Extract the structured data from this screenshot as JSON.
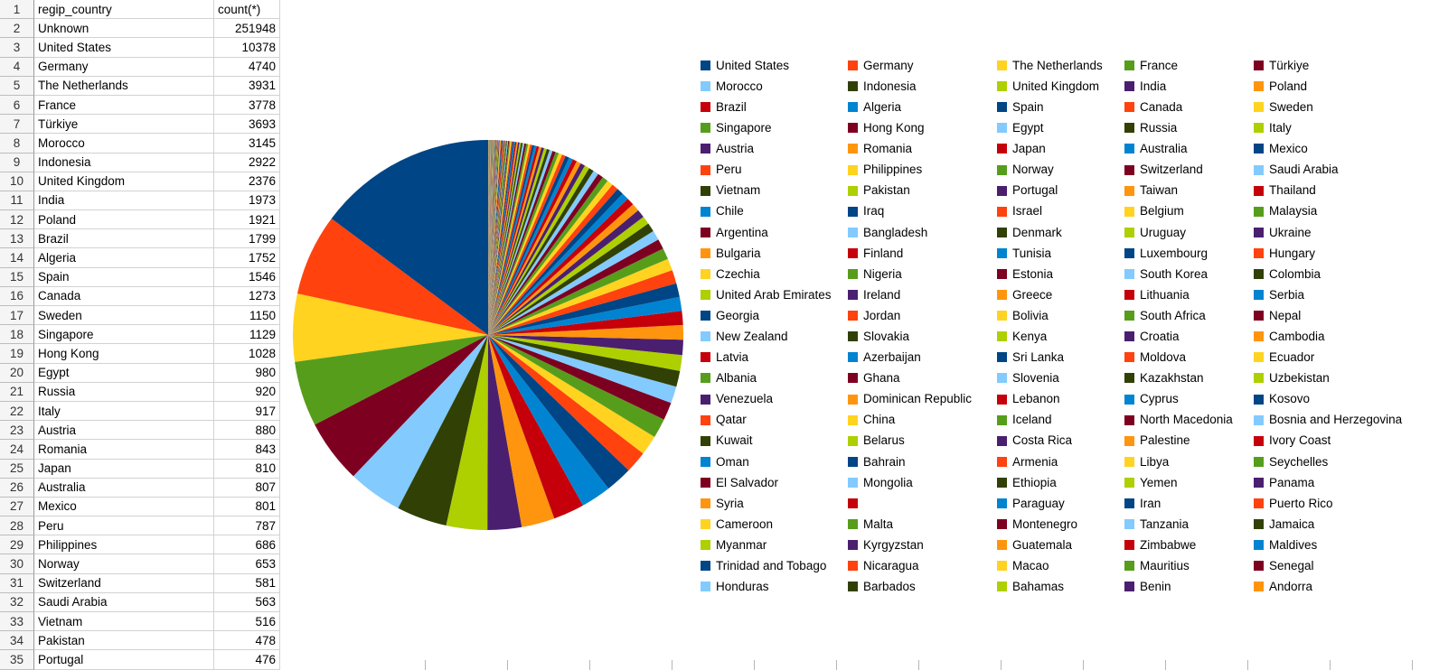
{
  "spreadsheet": {
    "rows": [
      {
        "n": "1",
        "country": "regip_country",
        "count": "count(*)",
        "header": true
      },
      {
        "n": "2",
        "country": "Unknown",
        "count": "251948"
      },
      {
        "n": "3",
        "country": "United States",
        "count": "10378"
      },
      {
        "n": "4",
        "country": "Germany",
        "count": "4740"
      },
      {
        "n": "5",
        "country": "The Netherlands",
        "count": "3931"
      },
      {
        "n": "6",
        "country": "France",
        "count": "3778"
      },
      {
        "n": "7",
        "country": "Türkiye",
        "count": "3693"
      },
      {
        "n": "8",
        "country": "Morocco",
        "count": "3145"
      },
      {
        "n": "9",
        "country": "Indonesia",
        "count": "2922"
      },
      {
        "n": "10",
        "country": "United Kingdom",
        "count": "2376"
      },
      {
        "n": "11",
        "country": "India",
        "count": "1973"
      },
      {
        "n": "12",
        "country": "Poland",
        "count": "1921"
      },
      {
        "n": "13",
        "country": "Brazil",
        "count": "1799"
      },
      {
        "n": "14",
        "country": "Algeria",
        "count": "1752"
      },
      {
        "n": "15",
        "country": "Spain",
        "count": "1546"
      },
      {
        "n": "16",
        "country": "Canada",
        "count": "1273"
      },
      {
        "n": "17",
        "country": "Sweden",
        "count": "1150"
      },
      {
        "n": "18",
        "country": "Singapore",
        "count": "1129"
      },
      {
        "n": "19",
        "country": "Hong Kong",
        "count": "1028"
      },
      {
        "n": "20",
        "country": "Egypt",
        "count": "980"
      },
      {
        "n": "21",
        "country": "Russia",
        "count": "920"
      },
      {
        "n": "22",
        "country": "Italy",
        "count": "917"
      },
      {
        "n": "23",
        "country": "Austria",
        "count": "880"
      },
      {
        "n": "24",
        "country": "Romania",
        "count": "843"
      },
      {
        "n": "25",
        "country": "Japan",
        "count": "810"
      },
      {
        "n": "26",
        "country": "Australia",
        "count": "807"
      },
      {
        "n": "27",
        "country": "Mexico",
        "count": "801"
      },
      {
        "n": "28",
        "country": "Peru",
        "count": "787"
      },
      {
        "n": "29",
        "country": "Philippines",
        "count": "686"
      },
      {
        "n": "30",
        "country": "Norway",
        "count": "653"
      },
      {
        "n": "31",
        "country": "Switzerland",
        "count": "581"
      },
      {
        "n": "32",
        "country": "Saudi Arabia",
        "count": "563"
      },
      {
        "n": "33",
        "country": "Vietnam",
        "count": "516"
      },
      {
        "n": "34",
        "country": "Pakistan",
        "count": "478"
      },
      {
        "n": "35",
        "country": "Portugal",
        "count": "476"
      }
    ]
  },
  "chart_data": {
    "type": "pie",
    "title": "",
    "legend_position": "right",
    "legend_columns": 5,
    "start_angle_deg": 90,
    "direction": "counterclockwise",
    "excluded_category": {
      "name": "Unknown",
      "value": 251948
    },
    "palette": [
      "#004586",
      "#ff420e",
      "#ffd320",
      "#579d1c",
      "#7e0021",
      "#83caff",
      "#314004",
      "#aecf00",
      "#4b1f6f",
      "#ff950e",
      "#c5000b",
      "#0084d1"
    ],
    "categories": [
      "United States",
      "Germany",
      "The Netherlands",
      "France",
      "Türkiye",
      "Morocco",
      "Indonesia",
      "United Kingdom",
      "India",
      "Poland",
      "Brazil",
      "Algeria",
      "Spain",
      "Canada",
      "Sweden",
      "Singapore",
      "Hong Kong",
      "Egypt",
      "Russia",
      "Italy",
      "Austria",
      "Romania",
      "Japan",
      "Australia",
      "Mexico",
      "Peru",
      "Philippines",
      "Norway",
      "Switzerland",
      "Saudi Arabia",
      "Vietnam",
      "Pakistan",
      "Portugal",
      "Taiwan",
      "Thailand",
      "Chile",
      "Iraq",
      "Israel",
      "Belgium",
      "Malaysia",
      "Argentina",
      "Bangladesh",
      "Denmark",
      "Uruguay",
      "Ukraine",
      "Bulgaria",
      "Finland",
      "Tunisia",
      "Luxembourg",
      "Hungary",
      "Czechia",
      "Nigeria",
      "Estonia",
      "South Korea",
      "Colombia",
      "United Arab Emirates",
      "Ireland",
      "Greece",
      "Lithuania",
      "Serbia",
      "Georgia",
      "Jordan",
      "Bolivia",
      "South Africa",
      "Nepal",
      "New Zealand",
      "Slovakia",
      "Kenya",
      "Croatia",
      "Cambodia",
      "Latvia",
      "Azerbaijan",
      "Sri Lanka",
      "Moldova",
      "Ecuador",
      "Albania",
      "Ghana",
      "Slovenia",
      "Kazakhstan",
      "Uzbekistan",
      "Venezuela",
      "Dominican Republic",
      "Lebanon",
      "Cyprus",
      "Kosovo",
      "Qatar",
      "China",
      "Iceland",
      "North Macedonia",
      "Bosnia and Herzegovina",
      "Kuwait",
      "Belarus",
      "Costa Rica",
      "Palestine",
      "Ivory Coast",
      "Oman",
      "Bahrain",
      "Armenia",
      "Libya",
      "Seychelles",
      "El Salvador",
      "Mongolia",
      "Ethiopia",
      "Yemen",
      "Panama",
      "Syria",
      "",
      "Paraguay",
      "Iran",
      "Puerto Rico",
      "Cameroon",
      "Malta",
      "Montenegro",
      "Tanzania",
      "Jamaica",
      "Myanmar",
      "Kyrgyzstan",
      "Guatemala",
      "Zimbabwe",
      "Maldives",
      "Trinidad and Tobago",
      "Nicaragua",
      "Macao",
      "Mauritius",
      "Senegal",
      "Honduras",
      "Barbados",
      "Bahamas",
      "Benin",
      "Andorra"
    ],
    "values_from_table": [
      10378,
      4740,
      3931,
      3778,
      3693,
      3145,
      2922,
      2376,
      1973,
      1921,
      1799,
      1752,
      1546,
      1273,
      1150,
      1129,
      1028,
      980,
      920,
      917,
      880,
      843,
      810,
      807,
      801,
      787,
      686,
      653,
      581,
      563,
      516,
      478,
      476
    ]
  }
}
